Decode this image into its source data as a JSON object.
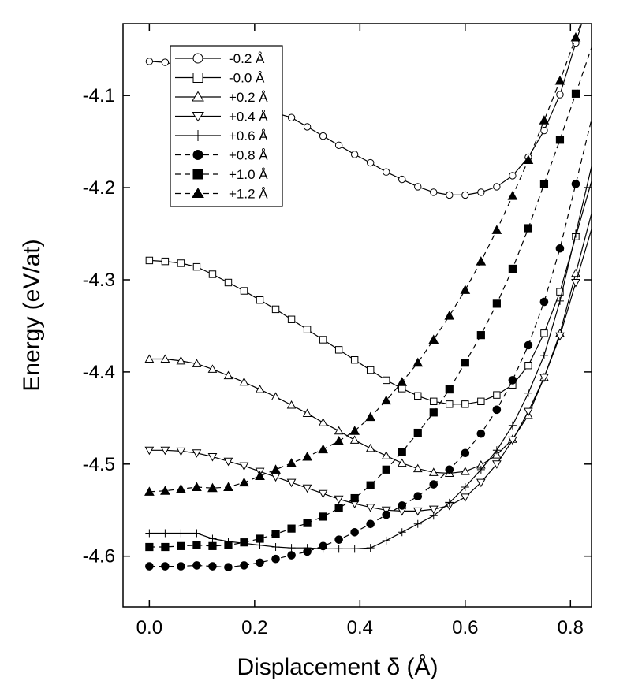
{
  "chart_data": {
    "type": "line",
    "xlabel": "Displacement δ (Å)",
    "ylabel": "Energy (eV/at)",
    "xlim": [
      -0.05,
      0.84
    ],
    "ylim": [
      -4.655,
      -4.022
    ],
    "xticks": [
      "0.0",
      "0.2",
      "0.4",
      "0.6",
      "0.8"
    ],
    "xtick_values": [
      0.0,
      0.2,
      0.4,
      0.6,
      0.8
    ],
    "yticks": [
      "-4.1",
      "-4.2",
      "-4.3",
      "-4.4",
      "-4.5",
      "-4.6"
    ],
    "ytick_values": [
      -4.1,
      -4.2,
      -4.3,
      -4.4,
      -4.5,
      -4.6
    ],
    "grid": false,
    "legend_position": "top-left",
    "series": [
      {
        "name": "-0.2 Å",
        "marker": "circle-open",
        "line": "solid",
        "x": [
          0.0,
          0.03,
          0.06,
          0.09,
          0.12,
          0.15,
          0.18,
          0.21,
          0.24,
          0.27,
          0.3,
          0.33,
          0.36,
          0.39,
          0.42,
          0.45,
          0.48,
          0.51,
          0.54,
          0.57,
          0.6,
          0.63,
          0.66,
          0.69,
          0.72,
          0.75,
          0.78,
          0.81
        ],
        "y": [
          -4.063,
          -4.064,
          -4.068,
          -4.075,
          -4.083,
          -4.092,
          -4.101,
          -4.11,
          -4.119,
          -4.124,
          -4.134,
          -4.144,
          -4.154,
          -4.164,
          -4.173,
          -4.183,
          -4.191,
          -4.199,
          -4.205,
          -4.208,
          -4.208,
          -4.205,
          -4.199,
          -4.187,
          -4.167,
          -4.138,
          -4.099,
          -4.043
        ]
      },
      {
        "name": "-0.0 Å",
        "marker": "square-open",
        "line": "solid",
        "x": [
          0.0,
          0.03,
          0.06,
          0.09,
          0.12,
          0.15,
          0.18,
          0.21,
          0.24,
          0.27,
          0.3,
          0.33,
          0.36,
          0.39,
          0.42,
          0.45,
          0.48,
          0.51,
          0.54,
          0.57,
          0.6,
          0.63,
          0.66,
          0.69,
          0.72,
          0.75,
          0.78,
          0.81
        ],
        "y": [
          -4.279,
          -4.28,
          -4.282,
          -4.286,
          -4.294,
          -4.303,
          -4.312,
          -4.322,
          -4.332,
          -4.343,
          -4.354,
          -4.365,
          -4.376,
          -4.387,
          -4.398,
          -4.409,
          -4.418,
          -4.426,
          -4.432,
          -4.435,
          -4.435,
          -4.432,
          -4.425,
          -4.414,
          -4.393,
          -4.358,
          -4.313,
          -4.253
        ]
      },
      {
        "name": "+0.2 Å",
        "marker": "triangle-up-open",
        "line": "solid",
        "x": [
          0.0,
          0.03,
          0.06,
          0.09,
          0.12,
          0.15,
          0.18,
          0.21,
          0.24,
          0.27,
          0.3,
          0.33,
          0.36,
          0.39,
          0.42,
          0.45,
          0.48,
          0.51,
          0.54,
          0.57,
          0.6,
          0.63,
          0.66,
          0.69,
          0.72,
          0.75,
          0.78,
          0.81
        ],
        "y": [
          -4.386,
          -4.386,
          -4.388,
          -4.391,
          -4.397,
          -4.404,
          -4.411,
          -4.419,
          -4.427,
          -4.436,
          -4.445,
          -4.455,
          -4.464,
          -4.474,
          -4.483,
          -4.491,
          -4.499,
          -4.505,
          -4.509,
          -4.51,
          -4.508,
          -4.501,
          -4.49,
          -4.473,
          -4.447,
          -4.406,
          -4.358,
          -4.293
        ]
      },
      {
        "name": "+0.4 Å",
        "marker": "triangle-down-open",
        "line": "solid",
        "x": [
          0.0,
          0.03,
          0.06,
          0.09,
          0.12,
          0.15,
          0.18,
          0.21,
          0.24,
          0.27,
          0.3,
          0.33,
          0.36,
          0.39,
          0.42,
          0.45,
          0.48,
          0.51,
          0.54,
          0.57,
          0.6,
          0.63,
          0.66,
          0.69,
          0.72,
          0.75,
          0.78,
          0.81
        ],
        "y": [
          -4.485,
          -4.485,
          -4.486,
          -4.488,
          -4.492,
          -4.497,
          -4.502,
          -4.508,
          -4.514,
          -4.52,
          -4.526,
          -4.532,
          -4.538,
          -4.543,
          -4.547,
          -4.55,
          -4.551,
          -4.551,
          -4.549,
          -4.545,
          -4.536,
          -4.52,
          -4.5,
          -4.474,
          -4.443,
          -4.406,
          -4.361,
          -4.303
        ]
      },
      {
        "name": "+0.6 Å",
        "marker": "plus",
        "line": "solid",
        "x": [
          0.0,
          0.03,
          0.06,
          0.09,
          0.12,
          0.15,
          0.18,
          0.21,
          0.24,
          0.27,
          0.3,
          0.33,
          0.36,
          0.39,
          0.42,
          0.45,
          0.48,
          0.51,
          0.54,
          0.57,
          0.6,
          0.63,
          0.66,
          0.69,
          0.72,
          0.75,
          0.78,
          0.81
        ],
        "y": [
          -4.575,
          -4.575,
          -4.575,
          -4.575,
          -4.581,
          -4.584,
          -4.586,
          -4.588,
          -4.59,
          -4.591,
          -4.591,
          -4.592,
          -4.592,
          -4.592,
          -4.591,
          -4.583,
          -4.574,
          -4.565,
          -4.556,
          -4.542,
          -4.525,
          -4.506,
          -4.485,
          -4.458,
          -4.423,
          -4.382,
          -4.323,
          -4.25
        ]
      },
      {
        "name": "+0.8 Å",
        "marker": "circle-filled",
        "line": "dashed",
        "x": [
          0.0,
          0.03,
          0.06,
          0.09,
          0.12,
          0.15,
          0.18,
          0.21,
          0.24,
          0.27,
          0.3,
          0.33,
          0.36,
          0.39,
          0.42,
          0.45,
          0.48,
          0.51,
          0.54,
          0.57,
          0.6,
          0.63,
          0.66,
          0.69,
          0.72,
          0.75,
          0.78,
          0.81
        ],
        "y": [
          -4.611,
          -4.611,
          -4.611,
          -4.61,
          -4.611,
          -4.612,
          -4.61,
          -4.607,
          -4.603,
          -4.599,
          -4.595,
          -4.589,
          -4.582,
          -4.574,
          -4.565,
          -4.555,
          -4.545,
          -4.535,
          -4.522,
          -4.506,
          -4.488,
          -4.467,
          -4.441,
          -4.409,
          -4.371,
          -4.324,
          -4.266,
          -4.196
        ]
      },
      {
        "name": "+1.0 Å",
        "marker": "square-filled",
        "line": "dashed",
        "x": [
          0.0,
          0.03,
          0.06,
          0.09,
          0.12,
          0.15,
          0.18,
          0.21,
          0.24,
          0.27,
          0.3,
          0.33,
          0.36,
          0.39,
          0.42,
          0.45,
          0.48,
          0.51,
          0.54,
          0.57,
          0.6,
          0.63,
          0.66,
          0.69,
          0.72,
          0.75,
          0.78,
          0.81
        ],
        "y": [
          -4.59,
          -4.59,
          -4.589,
          -4.588,
          -4.589,
          -4.588,
          -4.585,
          -4.581,
          -4.576,
          -4.57,
          -4.564,
          -4.557,
          -4.548,
          -4.537,
          -4.523,
          -4.506,
          -4.487,
          -4.466,
          -4.444,
          -4.419,
          -4.39,
          -4.36,
          -4.326,
          -4.288,
          -4.244,
          -4.196,
          -4.148,
          -4.098
        ]
      },
      {
        "name": "+1.2 Å",
        "marker": "triangle-up-filled",
        "line": "dashed",
        "x": [
          0.0,
          0.03,
          0.06,
          0.09,
          0.12,
          0.15,
          0.18,
          0.21,
          0.24,
          0.27,
          0.3,
          0.33,
          0.36,
          0.39,
          0.42,
          0.45,
          0.48,
          0.51,
          0.54,
          0.57,
          0.6,
          0.63,
          0.66,
          0.69,
          0.72,
          0.75,
          0.78,
          0.81
        ],
        "y": [
          -4.53,
          -4.529,
          -4.527,
          -4.525,
          -4.526,
          -4.525,
          -4.52,
          -4.513,
          -4.506,
          -4.499,
          -4.492,
          -4.484,
          -4.475,
          -4.464,
          -4.449,
          -4.431,
          -4.411,
          -4.39,
          -4.365,
          -4.339,
          -4.311,
          -4.28,
          -4.246,
          -4.209,
          -4.17,
          -4.127,
          -4.084,
          -4.037
        ]
      }
    ]
  }
}
